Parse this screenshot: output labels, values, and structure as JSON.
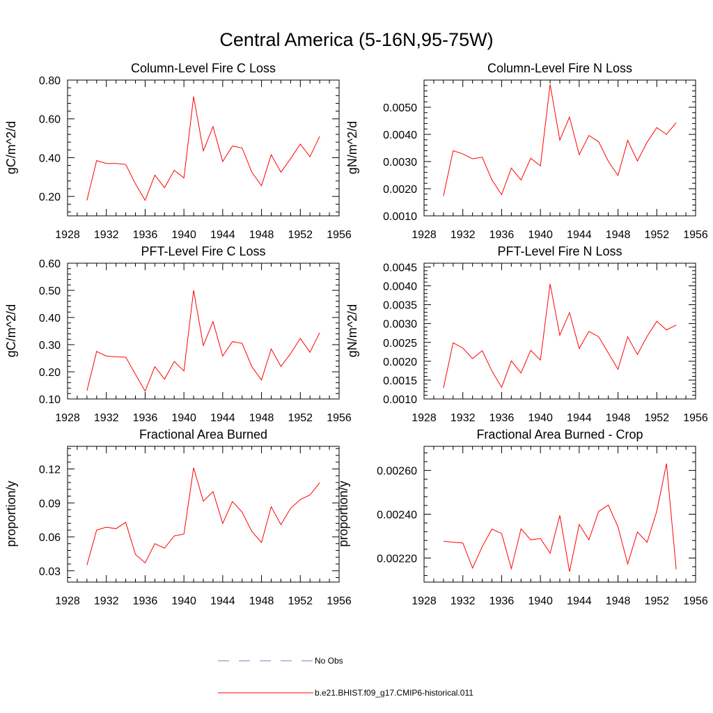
{
  "page_title": "Central America (5-16N,95-75W)",
  "legend": [
    {
      "label": "No Obs",
      "color": "#7777cc",
      "style": "dashed"
    },
    {
      "label": "b.e21.BHIST.f09_g17.CMIP6-historical.011",
      "color": "#ff0000",
      "style": "solid"
    }
  ],
  "chart_data": [
    {
      "type": "line",
      "title": "Column-Level Fire C Loss",
      "xlabel": "",
      "ylabel": "gC/m^2/d",
      "xlim": [
        1928,
        1956
      ],
      "ylim": [
        0.1,
        0.8
      ],
      "xticks": [
        "1928",
        "1932",
        "1936",
        "1940",
        "1944",
        "1948",
        "1952",
        "1956"
      ],
      "yticks": [
        "0.20",
        "0.40",
        "0.60",
        "0.80"
      ],
      "x": [
        1930,
        1931,
        1932,
        1933,
        1934,
        1935,
        1936,
        1937,
        1938,
        1939,
        1940,
        1941,
        1942,
        1943,
        1944,
        1945,
        1946,
        1947,
        1948,
        1949,
        1950,
        1951,
        1952,
        1953,
        1954
      ],
      "series": [
        {
          "name": "b.e21.BHIST.f09_g17.CMIP6-historical.011",
          "color": "#ff0000",
          "values": [
            0.18,
            0.385,
            0.37,
            0.37,
            0.365,
            0.265,
            0.18,
            0.31,
            0.245,
            0.335,
            0.295,
            0.715,
            0.435,
            0.56,
            0.38,
            0.46,
            0.45,
            0.325,
            0.255,
            0.415,
            0.325,
            0.395,
            0.47,
            0.405,
            0.51
          ]
        }
      ]
    },
    {
      "type": "line",
      "title": "Column-Level Fire N Loss",
      "xlabel": "",
      "ylabel": "gN/m^2/d",
      "xlim": [
        1928,
        1956
      ],
      "ylim": [
        0.001,
        0.006
      ],
      "xticks": [
        "1928",
        "1932",
        "1936",
        "1940",
        "1944",
        "1948",
        "1952",
        "1956"
      ],
      "yticks": [
        "0.0010",
        "0.0020",
        "0.0030",
        "0.0040",
        "0.0050"
      ],
      "x": [
        1930,
        1931,
        1932,
        1933,
        1934,
        1935,
        1936,
        1937,
        1938,
        1939,
        1940,
        1941,
        1942,
        1943,
        1944,
        1945,
        1946,
        1947,
        1948,
        1949,
        1950,
        1951,
        1952,
        1953,
        1954
      ],
      "series": [
        {
          "name": "b.e21.BHIST.f09_g17.CMIP6-historical.011",
          "color": "#ff0000",
          "values": [
            0.00173,
            0.0034,
            0.00328,
            0.0031,
            0.00316,
            0.00232,
            0.00178,
            0.00276,
            0.00232,
            0.00312,
            0.00284,
            0.00584,
            0.00379,
            0.00464,
            0.00325,
            0.00396,
            0.00373,
            0.00301,
            0.00249,
            0.00378,
            0.00302,
            0.00371,
            0.00425,
            0.004,
            0.00443
          ]
        }
      ]
    },
    {
      "type": "line",
      "title": "PFT-Level Fire C Loss",
      "xlabel": "",
      "ylabel": "gC/m^2/d",
      "xlim": [
        1928,
        1956
      ],
      "ylim": [
        0.1,
        0.6
      ],
      "xticks": [
        "1928",
        "1932",
        "1936",
        "1940",
        "1944",
        "1948",
        "1952",
        "1956"
      ],
      "yticks": [
        "0.10",
        "0.20",
        "0.30",
        "0.40",
        "0.50",
        "0.60"
      ],
      "x": [
        1930,
        1931,
        1932,
        1933,
        1934,
        1935,
        1936,
        1937,
        1938,
        1939,
        1940,
        1941,
        1942,
        1943,
        1944,
        1945,
        1946,
        1947,
        1948,
        1949,
        1950,
        1951,
        1952,
        1953,
        1954
      ],
      "series": [
        {
          "name": "b.e21.BHIST.f09_g17.CMIP6-historical.011",
          "color": "#ff0000",
          "values": [
            0.13,
            0.275,
            0.258,
            0.255,
            0.254,
            0.191,
            0.129,
            0.219,
            0.173,
            0.238,
            0.203,
            0.5,
            0.297,
            0.385,
            0.258,
            0.311,
            0.305,
            0.219,
            0.17,
            0.284,
            0.22,
            0.267,
            0.323,
            0.272,
            0.344
          ]
        }
      ]
    },
    {
      "type": "line",
      "title": "PFT-Level Fire N Loss",
      "xlabel": "",
      "ylabel": "gN/m^2/d",
      "xlim": [
        1928,
        1956
      ],
      "ylim": [
        0.001,
        0.0046
      ],
      "xticks": [
        "1928",
        "1932",
        "1936",
        "1940",
        "1944",
        "1948",
        "1952",
        "1956"
      ],
      "yticks": [
        "0.0010",
        "0.0015",
        "0.0020",
        "0.0025",
        "0.0030",
        "0.0035",
        "0.0040",
        "0.0045"
      ],
      "x": [
        1930,
        1931,
        1932,
        1933,
        1934,
        1935,
        1936,
        1937,
        1938,
        1939,
        1940,
        1941,
        1942,
        1943,
        1944,
        1945,
        1946,
        1947,
        1948,
        1949,
        1950,
        1951,
        1952,
        1953,
        1954
      ],
      "series": [
        {
          "name": "b.e21.BHIST.f09_g17.CMIP6-historical.011",
          "color": "#ff0000",
          "values": [
            0.00129,
            0.00249,
            0.00235,
            0.00207,
            0.00228,
            0.00174,
            0.00131,
            0.00201,
            0.00169,
            0.00229,
            0.00203,
            0.00405,
            0.00269,
            0.00329,
            0.00234,
            0.00279,
            0.00265,
            0.00222,
            0.00179,
            0.00265,
            0.00218,
            0.00266,
            0.00306,
            0.00283,
            0.00296
          ]
        }
      ]
    },
    {
      "type": "line",
      "title": "Fractional Area Burned",
      "xlabel": "",
      "ylabel": "proportion/y",
      "xlim": [
        1928,
        1956
      ],
      "ylim": [
        0.02,
        0.14
      ],
      "xticks": [
        "1928",
        "1932",
        "1936",
        "1940",
        "1944",
        "1948",
        "1952",
        "1956"
      ],
      "yticks": [
        "0.03",
        "0.06",
        "0.09",
        "0.12"
      ],
      "x": [
        1930,
        1931,
        1932,
        1933,
        1934,
        1935,
        1936,
        1937,
        1938,
        1939,
        1940,
        1941,
        1942,
        1943,
        1944,
        1945,
        1946,
        1947,
        1948,
        1949,
        1950,
        1951,
        1952,
        1953,
        1954
      ],
      "series": [
        {
          "name": "b.e21.BHIST.f09_g17.CMIP6-historical.011",
          "color": "#ff0000",
          "values": [
            0.035,
            0.066,
            0.0685,
            0.0672,
            0.0728,
            0.0445,
            0.037,
            0.054,
            0.05,
            0.0608,
            0.0625,
            0.121,
            0.0915,
            0.1,
            0.0718,
            0.0912,
            0.0818,
            0.0648,
            0.055,
            0.0866,
            0.0708,
            0.0852,
            0.093,
            0.097,
            0.1078
          ]
        }
      ]
    },
    {
      "type": "line",
      "title": "Fractional Area Burned - Crop",
      "xlabel": "",
      "ylabel": "proportion/y",
      "xlim": [
        1928,
        1956
      ],
      "ylim": [
        0.00209,
        0.00271
      ],
      "xticks": [
        "1928",
        "1932",
        "1936",
        "1940",
        "1944",
        "1948",
        "1952",
        "1956"
      ],
      "yticks": [
        "0.00220",
        "0.00240",
        "0.00260"
      ],
      "x": [
        1930,
        1931,
        1932,
        1933,
        1934,
        1935,
        1936,
        1937,
        1938,
        1939,
        1940,
        1941,
        1942,
        1943,
        1944,
        1945,
        1946,
        1947,
        1948,
        1949,
        1950,
        1951,
        1952,
        1953,
        1954
      ],
      "series": [
        {
          "name": "b.e21.BHIST.f09_g17.CMIP6-historical.011",
          "color": "#ff0000",
          "values": [
            0.002277,
            0.002272,
            0.002269,
            0.002154,
            0.002252,
            0.002332,
            0.002312,
            0.002151,
            0.002333,
            0.002283,
            0.002289,
            0.002222,
            0.002395,
            0.002138,
            0.002353,
            0.002283,
            0.002412,
            0.002442,
            0.002342,
            0.002173,
            0.002319,
            0.002272,
            0.002414,
            0.002631,
            0.002148
          ]
        }
      ]
    }
  ]
}
